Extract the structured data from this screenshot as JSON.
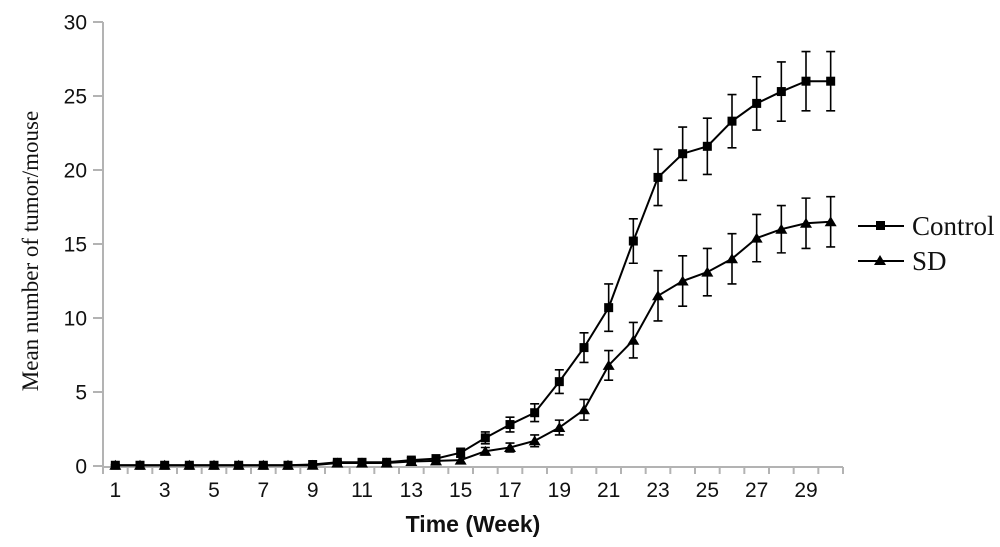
{
  "figure": {
    "background": "#ffffff",
    "axis_color": "#b3b3b3",
    "series_color": "#000000"
  },
  "chart_data": {
    "type": "line",
    "title": "",
    "xlabel": "Time (Week)",
    "ylabel": "Mean number of tumor/mouse",
    "x": [
      1,
      2,
      3,
      4,
      5,
      6,
      7,
      8,
      9,
      10,
      11,
      12,
      13,
      14,
      15,
      16,
      17,
      18,
      19,
      20,
      21,
      22,
      23,
      24,
      25,
      26,
      27,
      28,
      29,
      30
    ],
    "xtick_labeled_weeks": [
      1,
      3,
      5,
      7,
      9,
      11,
      13,
      15,
      17,
      19,
      21,
      23,
      25,
      27,
      29
    ],
    "ylim": [
      0,
      30
    ],
    "yticks": [
      0,
      5,
      10,
      15,
      20,
      25,
      30
    ],
    "grid": false,
    "error_bars": true,
    "legend_position": "right",
    "series": [
      {
        "name": "Control",
        "marker": "square",
        "color": "#000000",
        "values": [
          0.05,
          0.05,
          0.05,
          0.05,
          0.05,
          0.05,
          0.05,
          0.05,
          0.1,
          0.25,
          0.25,
          0.25,
          0.4,
          0.5,
          0.9,
          1.9,
          2.8,
          3.6,
          5.7,
          8.0,
          10.7,
          15.2,
          19.5,
          21.1,
          21.6,
          23.3,
          24.5,
          25.3,
          26.0,
          26.0
        ],
        "errors": [
          0.05,
          0.05,
          0.05,
          0.05,
          0.05,
          0.05,
          0.05,
          0.05,
          0.05,
          0.1,
          0.1,
          0.1,
          0.15,
          0.2,
          0.3,
          0.4,
          0.5,
          0.6,
          0.8,
          1.0,
          1.6,
          1.5,
          1.9,
          1.8,
          1.9,
          1.8,
          1.8,
          2.0,
          2.0,
          2.0
        ]
      },
      {
        "name": "SD",
        "marker": "triangle",
        "color": "#000000",
        "values": [
          0.05,
          0.05,
          0.05,
          0.05,
          0.05,
          0.05,
          0.05,
          0.05,
          0.05,
          0.2,
          0.2,
          0.2,
          0.3,
          0.35,
          0.4,
          1.0,
          1.25,
          1.7,
          2.6,
          3.8,
          6.8,
          8.5,
          11.5,
          12.5,
          13.1,
          14.0,
          15.4,
          16.0,
          16.4,
          16.5
        ],
        "errors": [
          0.05,
          0.05,
          0.05,
          0.05,
          0.05,
          0.05,
          0.05,
          0.05,
          0.05,
          0.1,
          0.1,
          0.1,
          0.1,
          0.15,
          0.2,
          0.25,
          0.3,
          0.4,
          0.5,
          0.7,
          1.0,
          1.2,
          1.7,
          1.7,
          1.6,
          1.7,
          1.6,
          1.6,
          1.7,
          1.7
        ]
      }
    ]
  }
}
